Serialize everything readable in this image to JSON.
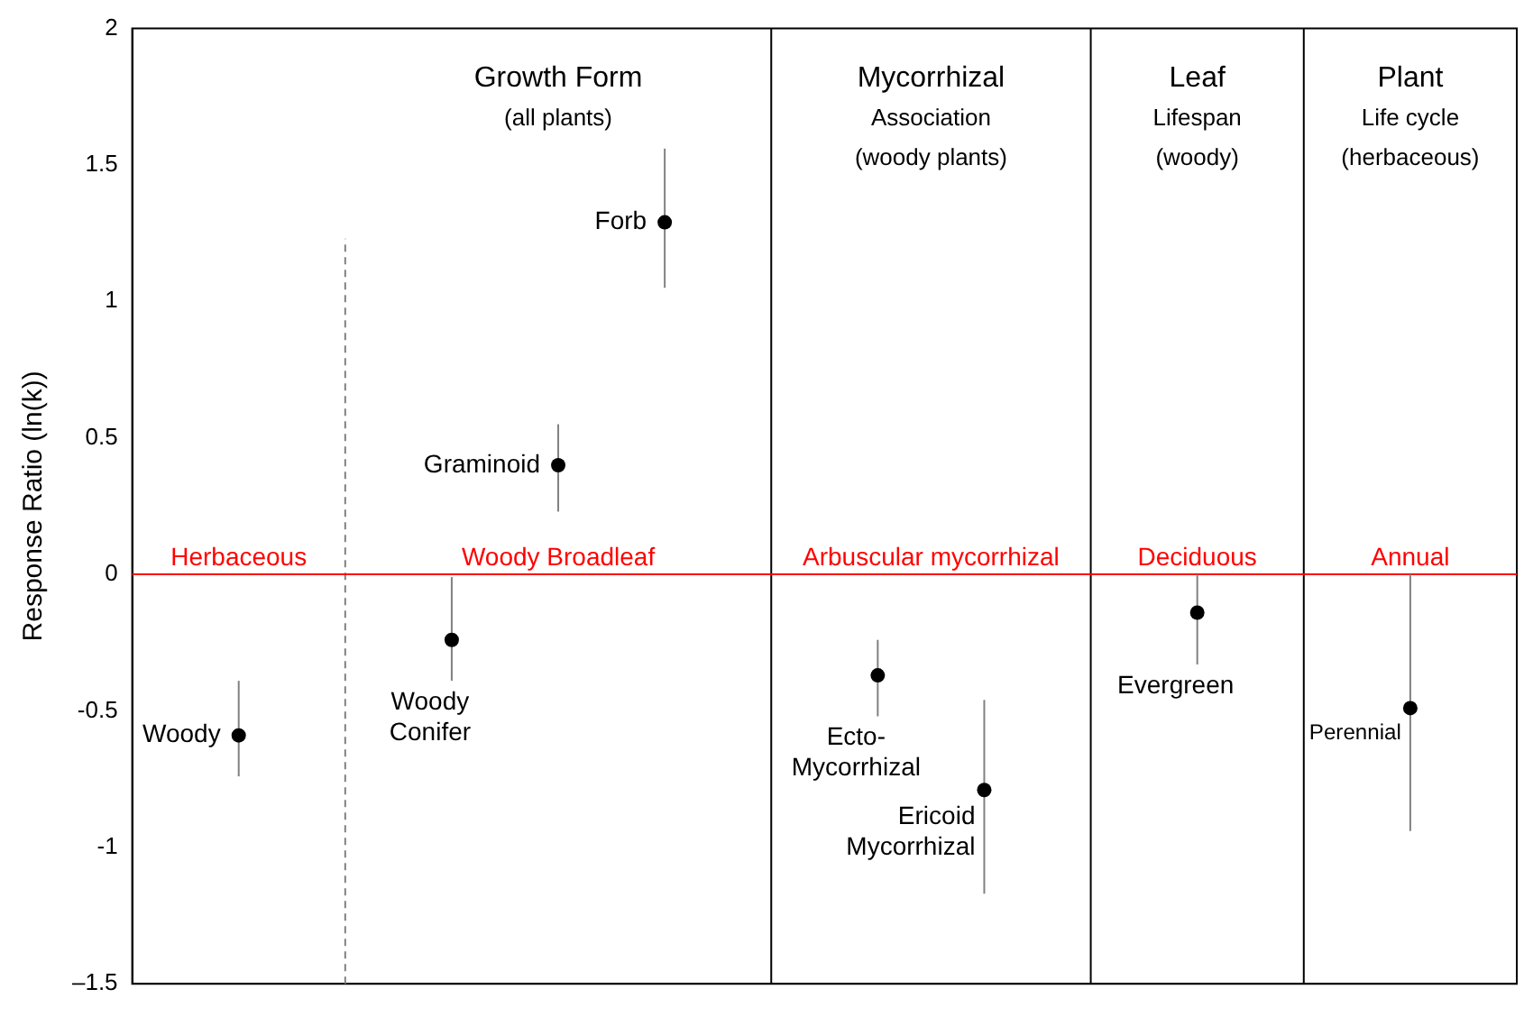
{
  "chart_data": {
    "type": "scatter",
    "ylabel": "Response Ratio (ln(k))",
    "grid": false,
    "legend": false,
    "marker": "circle",
    "categories": [
      null,
      null,
      null,
      null,
      null,
      null,
      null,
      null,
      null,
      null,
      null,
      null,
      null,
      null
    ],
    "ylim": [
      -1.5,
      2
    ],
    "yticks": [
      {
        "value": -1.5,
        "label": "–1.5"
      },
      -1,
      -0.5,
      0,
      0.5,
      1,
      1.5,
      2
    ],
    "series": [
      {
        "color": "#000000",
        "values": [
          null,
          -0.59,
          null,
          -0.24,
          0.4,
          1.29,
          null,
          -0.37,
          -0.79,
          null,
          -0.14,
          null,
          -0.49,
          null
        ],
        "errors": [
          null,
          [
            -0.74,
            -0.39
          ],
          null,
          [
            -0.39,
            -0.01
          ],
          [
            0.23,
            0.55
          ],
          [
            1.05,
            1.56
          ],
          null,
          [
            -0.52,
            -0.24
          ],
          [
            -1.17,
            -0.46
          ],
          null,
          [
            -0.33,
            0
          ],
          null,
          [
            -0.94,
            0
          ],
          null
        ],
        "value_labels": [
          null,
          "Woody",
          null,
          "Woody\nConifer",
          "Graminoid",
          "Forb",
          null,
          "Ecto-\nMycorrhizal",
          "Ericoid\nMycorrhizal",
          null,
          "Evergreen",
          null,
          "Perennial",
          null
        ]
      }
    ],
    "ref_lines": [
      {
        "axis": "y",
        "value": 0,
        "color": "#ff0000"
      }
    ],
    "annotations": [
      "Growth Form\n(all plants)",
      "Mycorrhizal\nAssociation\n(woody plants)",
      "Leaf\nLifespan\n(woody)",
      "Plant\nLife cycle\n(herbaceous)",
      {
        "text": "Herbaceous",
        "y": 0
      },
      {
        "text": "Woody Broadleaf",
        "y": 0
      },
      {
        "text": "Arbuscular mycorrhizal",
        "y": 0
      },
      {
        "text": "Deciduous",
        "y": 0
      },
      {
        "text": "Annual",
        "y": 0
      }
    ]
  }
}
